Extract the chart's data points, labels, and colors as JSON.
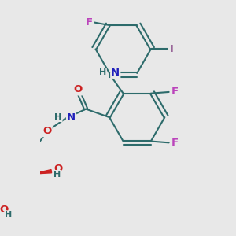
{
  "background_color": "#e8e8e8",
  "bond_color": "#2d6b6b",
  "bond_width": 1.5,
  "atom_colors": {
    "C": "#2d6b6b",
    "N": "#2020bb",
    "O": "#cc2222",
    "F": "#bb44bb",
    "I": "#996699",
    "H": "#2d6b6b"
  },
  "font_size": 8.5,
  "figsize": [
    3.0,
    3.0
  ],
  "dpi": 100
}
